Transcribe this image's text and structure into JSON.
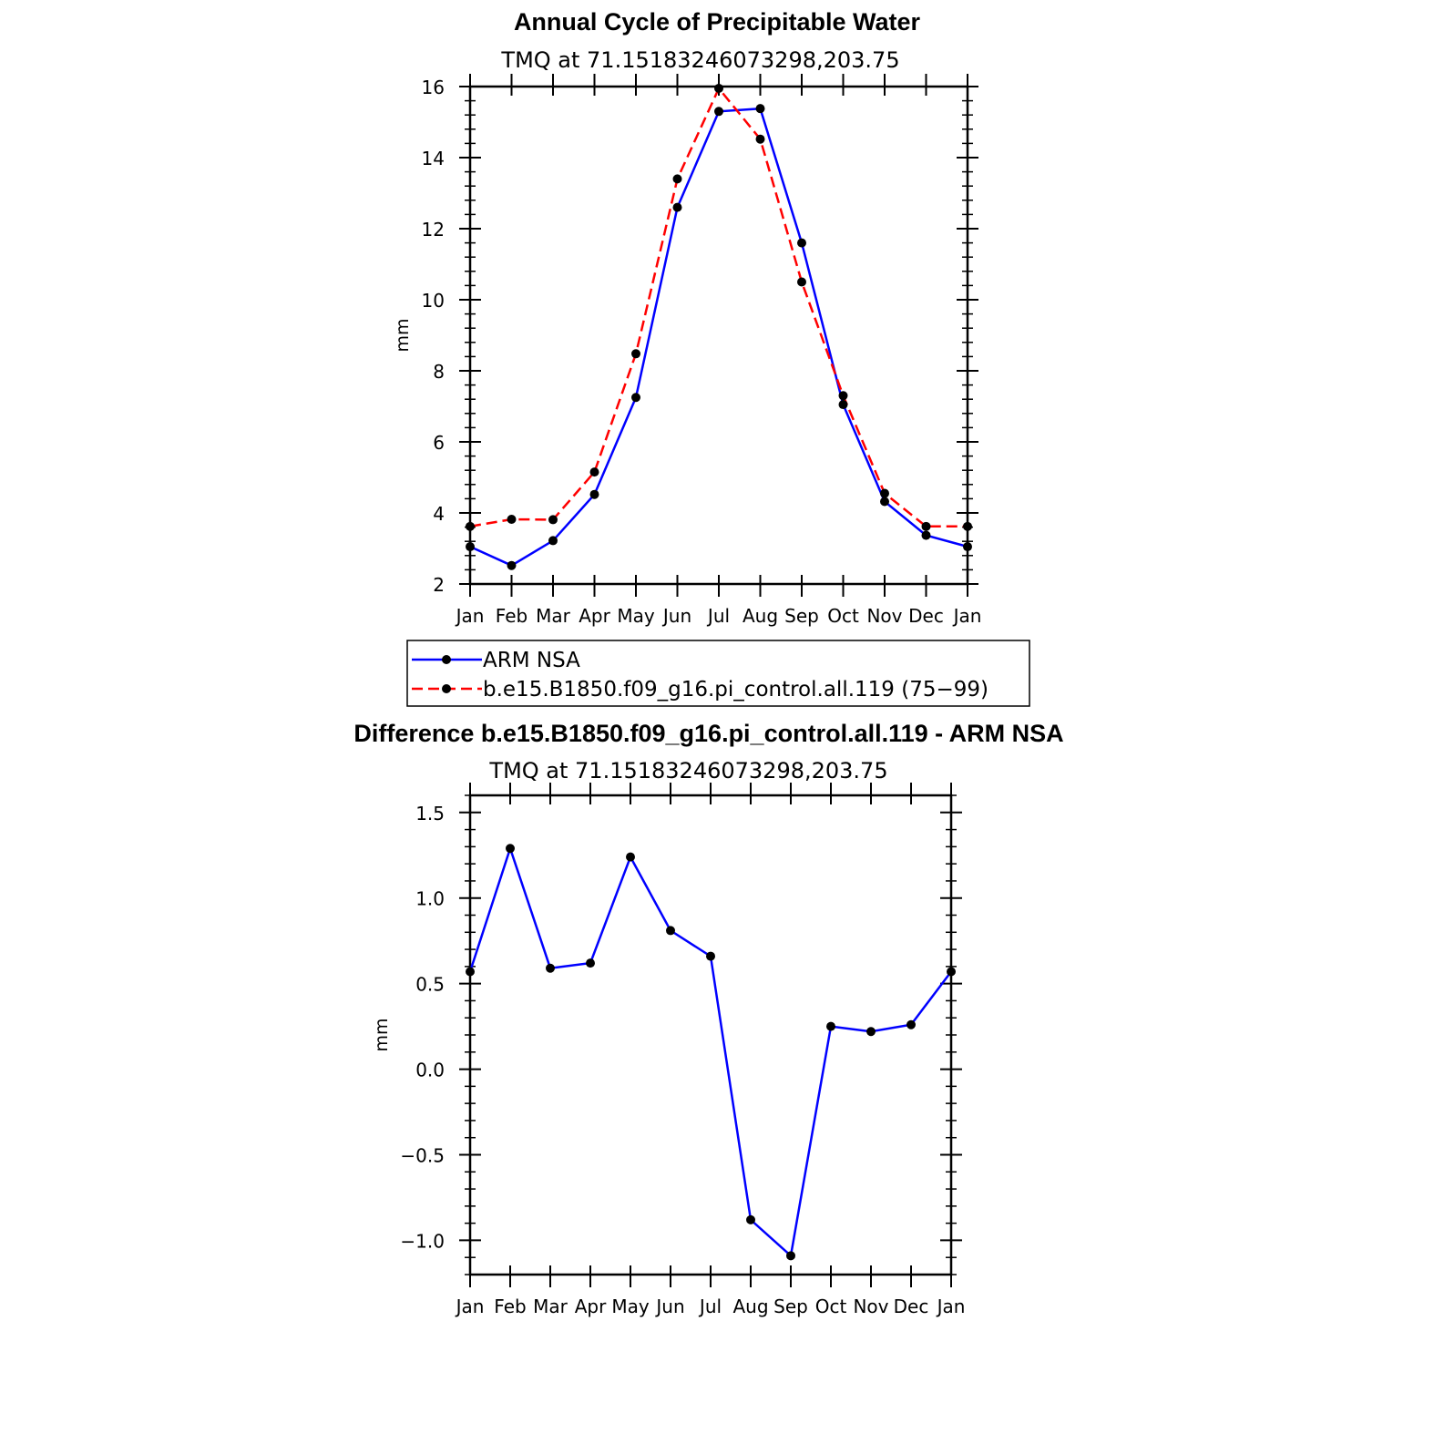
{
  "chart_data": [
    {
      "type": "line",
      "title": "Annual Cycle of Precipitable Water",
      "subtitle": "TMQ at 71.15183246073298,203.75",
      "xlabel": "",
      "ylabel": "mm",
      "categories": [
        "Jan",
        "Feb",
        "Mar",
        "Apr",
        "May",
        "Jun",
        "Jul",
        "Aug",
        "Sep",
        "Oct",
        "Nov",
        "Dec",
        "Jan"
      ],
      "ylim": [
        2,
        16
      ],
      "yticks": [
        "2",
        "4",
        "6",
        "8",
        "10",
        "12",
        "14",
        "16"
      ],
      "yticks_values": [
        2,
        4,
        6,
        8,
        10,
        12,
        14,
        16
      ],
      "grid": false,
      "legend": "bottom",
      "series": [
        {
          "name": "ARM NSA",
          "color": "#0000ff",
          "dash": "solid",
          "values": [
            3.05,
            2.52,
            3.22,
            4.52,
            7.25,
            12.6,
            15.3,
            15.38,
            11.6,
            7.05,
            4.32,
            3.37,
            3.05
          ]
        },
        {
          "name": "b.e15.B1850.f09_g16.pi_control.all.119 (75−99)",
          "color": "#ff0000",
          "dash": "dashed",
          "values": [
            3.62,
            3.82,
            3.81,
            5.15,
            8.48,
            13.4,
            15.95,
            14.52,
            10.5,
            7.3,
            4.55,
            3.62,
            3.62
          ]
        }
      ]
    },
    {
      "type": "line",
      "title": "Difference b.e15.B1850.f09_g16.pi_control.all.119 - ARM NSA",
      "subtitle": "TMQ at 71.15183246073298,203.75",
      "xlabel": "",
      "ylabel": "mm",
      "categories": [
        "Jan",
        "Feb",
        "Mar",
        "Apr",
        "May",
        "Jun",
        "Jul",
        "Aug",
        "Sep",
        "Oct",
        "Nov",
        "Dec",
        "Jan"
      ],
      "ylim": [
        -1.2,
        1.6
      ],
      "yticks": [
        "−1.0",
        "−0.5",
        "0.0",
        "0.5",
        "1.0",
        "1.5"
      ],
      "yticks_values": [
        -1.0,
        -0.5,
        0.0,
        0.5,
        1.0,
        1.5
      ],
      "grid": false,
      "series": [
        {
          "color": "#0000ff",
          "dash": "solid",
          "values": [
            0.57,
            1.29,
            0.59,
            0.62,
            1.24,
            0.81,
            0.66,
            -0.88,
            -1.09,
            0.25,
            0.22,
            0.26,
            0.57
          ]
        }
      ]
    }
  ]
}
